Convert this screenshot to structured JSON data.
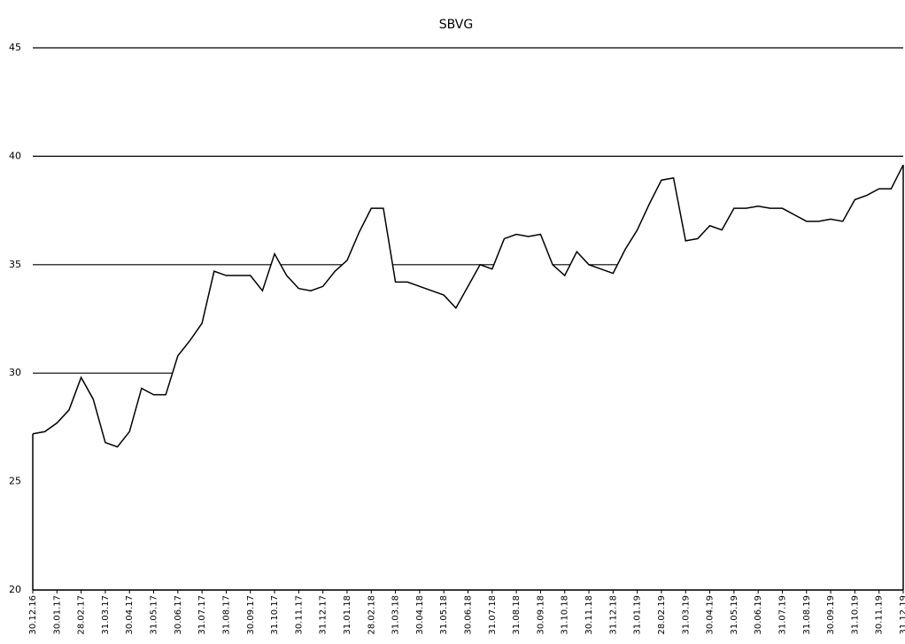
{
  "chart_data": {
    "type": "area",
    "title": "SBVG",
    "categories": [
      "30.12.16",
      null,
      "30.01.17",
      null,
      "28.02.17",
      null,
      "31.03.17",
      null,
      "30.04.17",
      null,
      "31.05.17",
      null,
      "30.06.17",
      null,
      "31.07.17",
      null,
      "31.08.17",
      null,
      "30.09.17",
      null,
      "31.10.17",
      null,
      "30.11.17",
      null,
      "31.12.17",
      null,
      "31.01.18",
      null,
      "28.02.18",
      null,
      "31.03.18",
      null,
      "30.04.18",
      null,
      "31.05.18",
      null,
      "30.06.18",
      null,
      "31.07.18",
      null,
      "31.08.18",
      null,
      "30.09.18",
      null,
      "31.10.18",
      null,
      "30.11.18",
      null,
      "31.12.18",
      null,
      "31.01.19",
      null,
      "28.02.19",
      null,
      "31.03.19",
      null,
      "30.04.19",
      null,
      "31.05.19",
      null,
      "30.06.19",
      null,
      "31.07.19",
      null,
      "31.08.19",
      null,
      "30.09.19",
      null,
      "31.10.19",
      null,
      "30.11.19",
      null,
      "31.12.19"
    ],
    "values": [
      27.2,
      27.3,
      27.7,
      28.3,
      29.8,
      28.8,
      26.8,
      26.6,
      27.3,
      29.3,
      29.0,
      29.0,
      30.8,
      31.5,
      32.3,
      34.7,
      34.5,
      34.5,
      34.5,
      33.8,
      35.5,
      34.5,
      33.9,
      33.8,
      34.0,
      34.7,
      35.2,
      36.5,
      37.6,
      37.6,
      34.2,
      34.2,
      34.0,
      33.8,
      33.6,
      33.0,
      34.0,
      35.0,
      34.8,
      36.2,
      36.4,
      36.3,
      36.4,
      35.0,
      34.5,
      35.6,
      35.0,
      34.8,
      34.6,
      35.7,
      36.6,
      37.8,
      38.9,
      39.0,
      36.1,
      36.2,
      36.8,
      36.6,
      37.6,
      37.6,
      37.7,
      37.6,
      37.6,
      37.3,
      37.0,
      37.0,
      37.1,
      37.0,
      38.0,
      38.2,
      38.5,
      38.5,
      39.6
    ],
    "color": "#000000",
    "fill": "#ffffff",
    "ylim": [
      20,
      45
    ],
    "yticks": [
      20,
      25,
      30,
      35,
      40,
      45
    ],
    "grid": true
  }
}
